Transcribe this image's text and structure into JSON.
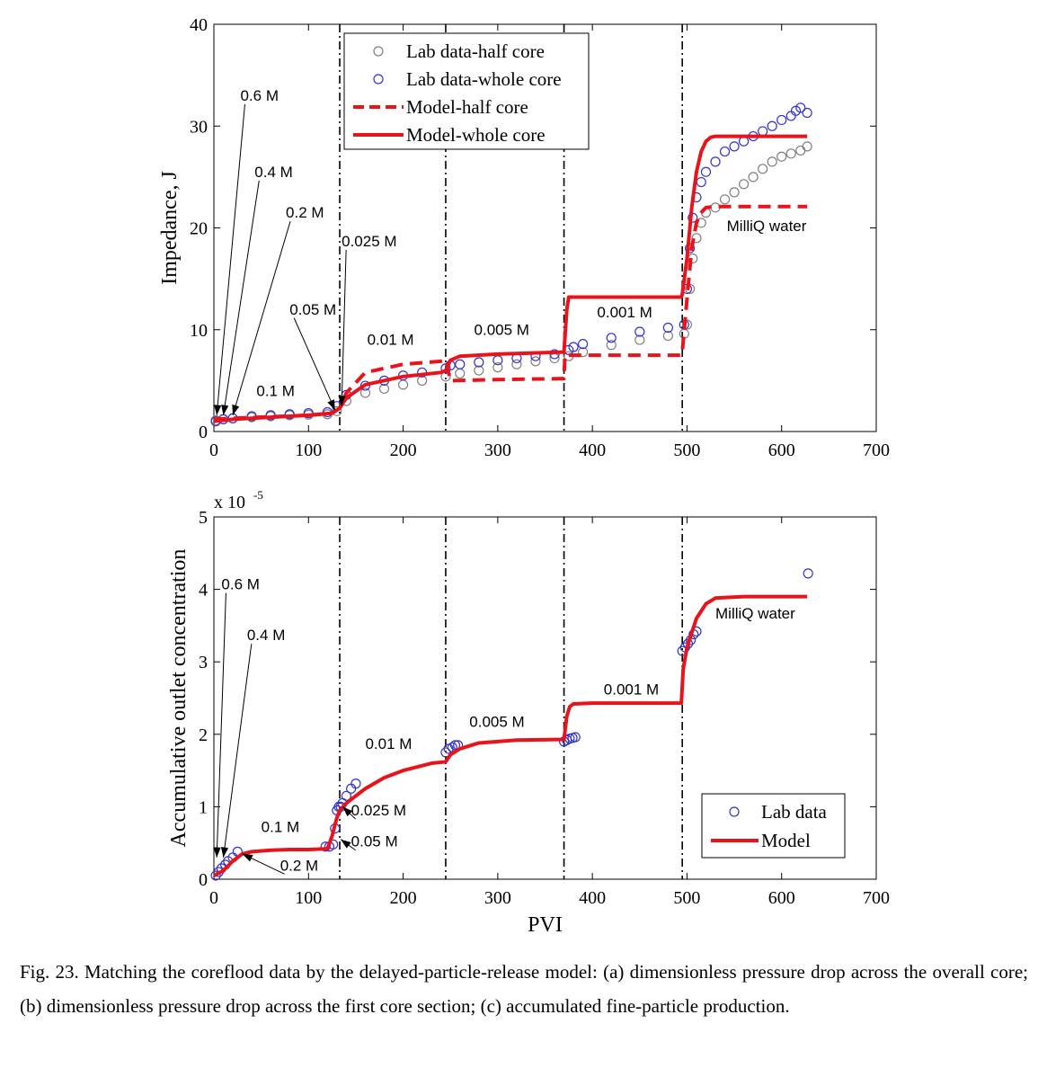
{
  "chart_data": [
    {
      "type": "scatter",
      "xlabel": "",
      "ylabel": "Impedance, J",
      "xlim": [
        0,
        700
      ],
      "ylim": [
        0,
        40
      ],
      "xticks": [
        "0",
        "100",
        "200",
        "300",
        "400",
        "500",
        "600",
        "700"
      ],
      "yticks": [
        "0",
        "10",
        "20",
        "30",
        "40"
      ],
      "legend_position": "top-center",
      "colors": {
        "half_core": "#808080",
        "whole_core": "#3333cc",
        "model": "#e8141c"
      },
      "vlines": [
        133,
        245,
        370,
        495
      ],
      "series": [
        {
          "name": "Lab data-half core",
          "style": "circle-gray",
          "x": [
            2,
            10,
            20,
            40,
            60,
            80,
            100,
            120,
            130,
            140,
            160,
            180,
            200,
            220,
            245,
            260,
            280,
            300,
            320,
            340,
            360,
            375,
            390,
            420,
            450,
            480,
            497,
            500,
            503,
            506,
            510,
            515,
            520,
            530,
            540,
            550,
            560,
            570,
            580,
            590,
            600,
            610,
            620,
            627
          ],
          "y": [
            1.1,
            1.2,
            1.3,
            1.4,
            1.5,
            1.6,
            1.65,
            1.7,
            2.0,
            3.0,
            3.8,
            4.2,
            4.6,
            5.0,
            5.4,
            5.7,
            6.0,
            6.3,
            6.6,
            6.9,
            7.2,
            7.4,
            7.8,
            8.5,
            9.0,
            9.4,
            9.6,
            10.5,
            14,
            17,
            19,
            20.5,
            21.5,
            22,
            22.8,
            23.5,
            24.3,
            25,
            25.8,
            26.5,
            27,
            27.3,
            27.6,
            28
          ]
        },
        {
          "name": "Lab data-whole core",
          "style": "circle-blue",
          "x": [
            2,
            10,
            20,
            40,
            60,
            80,
            100,
            120,
            130,
            140,
            160,
            180,
            200,
            220,
            245,
            250,
            260,
            280,
            300,
            320,
            340,
            360,
            375,
            380,
            390,
            420,
            450,
            480,
            497,
            500,
            503,
            506,
            510,
            515,
            520,
            530,
            540,
            550,
            560,
            570,
            580,
            590,
            600,
            610,
            615,
            620,
            627
          ],
          "y": [
            1.0,
            1.2,
            1.3,
            1.5,
            1.6,
            1.7,
            1.8,
            1.9,
            2.5,
            3.6,
            4.5,
            5.0,
            5.5,
            5.8,
            6.2,
            6.5,
            6.6,
            6.8,
            7.0,
            7.2,
            7.4,
            7.6,
            8.0,
            8.3,
            8.6,
            9.2,
            9.8,
            10.2,
            10.5,
            14,
            18,
            21,
            23,
            24.5,
            25.5,
            26.5,
            27.5,
            28,
            28.5,
            29,
            29.5,
            30,
            30.6,
            31,
            31.5,
            31.8,
            31.3
          ]
        },
        {
          "name": "Model-half core",
          "style": "dashed-red",
          "x": [
            0,
            20,
            60,
            100,
            125,
            133,
            140,
            160,
            200,
            240,
            245,
            250,
            300,
            370,
            371,
            420,
            494,
            495,
            500,
            505,
            510,
            515,
            520,
            530,
            560,
            600,
            627
          ],
          "y": [
            1.2,
            1.3,
            1.45,
            1.6,
            1.8,
            2.3,
            3.8,
            5.8,
            6.6,
            6.9,
            7.0,
            5.0,
            5.1,
            5.2,
            7.5,
            7.5,
            7.5,
            7.8,
            13,
            18,
            20.5,
            21.5,
            22,
            22.1,
            22.1,
            22.1,
            22.1
          ]
        },
        {
          "name": "Model-whole core",
          "style": "solid-red",
          "x": [
            0,
            20,
            60,
            100,
            125,
            133,
            140,
            160,
            200,
            240,
            245,
            250,
            260,
            300,
            370,
            373,
            375,
            420,
            494,
            495,
            500,
            505,
            510,
            515,
            520,
            525,
            530,
            560,
            600,
            627
          ],
          "y": [
            1.0,
            1.2,
            1.4,
            1.6,
            1.8,
            2.3,
            3.3,
            4.6,
            5.4,
            5.8,
            6.0,
            7.0,
            7.4,
            7.6,
            7.8,
            12,
            13.2,
            13.2,
            13.2,
            13.5,
            17,
            22,
            25.5,
            27.5,
            28.5,
            28.9,
            29,
            29,
            29,
            29
          ]
        }
      ],
      "annotations": [
        {
          "text": "0.6 M",
          "x": 28,
          "y": 32.5,
          "arrow_to": [
            3,
            1.6
          ]
        },
        {
          "text": "0.4 M",
          "x": 43,
          "y": 25,
          "arrow_to": [
            10,
            1.6
          ]
        },
        {
          "text": "0.2 M",
          "x": 76,
          "y": 21,
          "arrow_to": [
            20,
            1.6
          ]
        },
        {
          "text": "0.05 M",
          "x": 80,
          "y": 11.5,
          "arrow_to": [
            128,
            2.1
          ]
        },
        {
          "text": "0.025 M",
          "x": 135,
          "y": 18.2,
          "arrow_to": [
            135,
            2.5
          ]
        },
        {
          "text": "0.1 M",
          "x": 45,
          "y": 3.5
        },
        {
          "text": "0.01 M",
          "x": 162,
          "y": 8.5
        },
        {
          "text": "0.005 M",
          "x": 275,
          "y": 9.5
        },
        {
          "text": "0.001 M",
          "x": 405,
          "y": 11.2
        },
        {
          "text": "MilliQ water",
          "x": 542,
          "y": 19.7
        }
      ]
    },
    {
      "type": "scatter",
      "xlabel": "PVI",
      "ylabel": "Accumulative outlet concentration",
      "y_multiplier": "x 10",
      "y_multiplier_exp": "-5",
      "xlim": [
        0,
        700
      ],
      "ylim": [
        0,
        5
      ],
      "xticks": [
        "0",
        "100",
        "200",
        "300",
        "400",
        "500",
        "600",
        "700"
      ],
      "yticks": [
        "0",
        "1",
        "2",
        "3",
        "4",
        "5"
      ],
      "legend_position": "bottom-right",
      "vlines": [
        133,
        245,
        370,
        495
      ],
      "series": [
        {
          "name": "Lab data",
          "style": "circle-blue",
          "x": [
            2,
            5,
            8,
            12,
            15,
            20,
            25,
            118,
            122,
            126,
            128,
            130,
            132,
            134,
            136,
            140,
            145,
            150,
            245,
            248,
            252,
            255,
            258,
            370,
            373,
            376,
            379,
            382,
            495,
            498,
            501,
            504,
            507,
            510,
            628
          ],
          "y": [
            0.05,
            0.1,
            0.15,
            0.2,
            0.25,
            0.3,
            0.38,
            0.45,
            0.45,
            0.48,
            0.7,
            0.95,
            1.0,
            1.0,
            1.05,
            1.15,
            1.25,
            1.32,
            1.75,
            1.8,
            1.82,
            1.85,
            1.85,
            1.9,
            1.92,
            1.94,
            1.95,
            1.96,
            3.15,
            3.2,
            3.25,
            3.3,
            3.38,
            3.42,
            4.22
          ]
        },
        {
          "name": "Model",
          "style": "solid-red",
          "x": [
            0,
            10,
            20,
            30,
            40,
            60,
            80,
            100,
            120,
            125,
            130,
            133,
            140,
            160,
            180,
            200,
            230,
            245,
            250,
            260,
            280,
            320,
            370,
            373,
            376,
            380,
            400,
            450,
            494,
            496,
            500,
            505,
            510,
            520,
            530,
            560,
            600,
            627
          ],
          "y": [
            0.05,
            0.12,
            0.25,
            0.35,
            0.38,
            0.4,
            0.41,
            0.41,
            0.42,
            0.6,
            0.85,
            0.95,
            1.05,
            1.25,
            1.4,
            1.5,
            1.6,
            1.62,
            1.72,
            1.8,
            1.88,
            1.92,
            1.93,
            2.25,
            2.38,
            2.42,
            2.43,
            2.43,
            2.43,
            2.9,
            3.2,
            3.4,
            3.6,
            3.8,
            3.88,
            3.9,
            3.9,
            3.9
          ]
        }
      ],
      "annotations": [
        {
          "text": "0.6 M",
          "x": 8,
          "y": 4.0,
          "arrow_to": [
            3,
            0.3
          ]
        },
        {
          "text": "0.4 M",
          "x": 35,
          "y": 3.3,
          "arrow_to": [
            10,
            0.3
          ]
        },
        {
          "text": "0.2 M",
          "x": 70,
          "y": 0.12,
          "arrow_to": [
            30,
            0.35
          ]
        },
        {
          "text": "0.1 M",
          "x": 50,
          "y": 0.65
        },
        {
          "text": "0.025 M",
          "x": 145,
          "y": 0.88,
          "arrow_to": [
            136,
            1.0
          ]
        },
        {
          "text": "0.05 M",
          "x": 145,
          "y": 0.45,
          "arrow_to": [
            134,
            0.55
          ]
        },
        {
          "text": "0.01 M",
          "x": 160,
          "y": 1.8
        },
        {
          "text": "0.005 M",
          "x": 270,
          "y": 2.1
        },
        {
          "text": "0.001 M",
          "x": 412,
          "y": 2.55
        },
        {
          "text": "MilliQ water",
          "x": 530,
          "y": 3.6
        }
      ]
    }
  ],
  "caption": "Fig. 23. Matching the coreflood data by the delayed-particle-release model: (a) dimensionless pressure drop across the overall core; (b) dimensionless pressure drop across the first core section; (c) accumulated fine-particle production."
}
